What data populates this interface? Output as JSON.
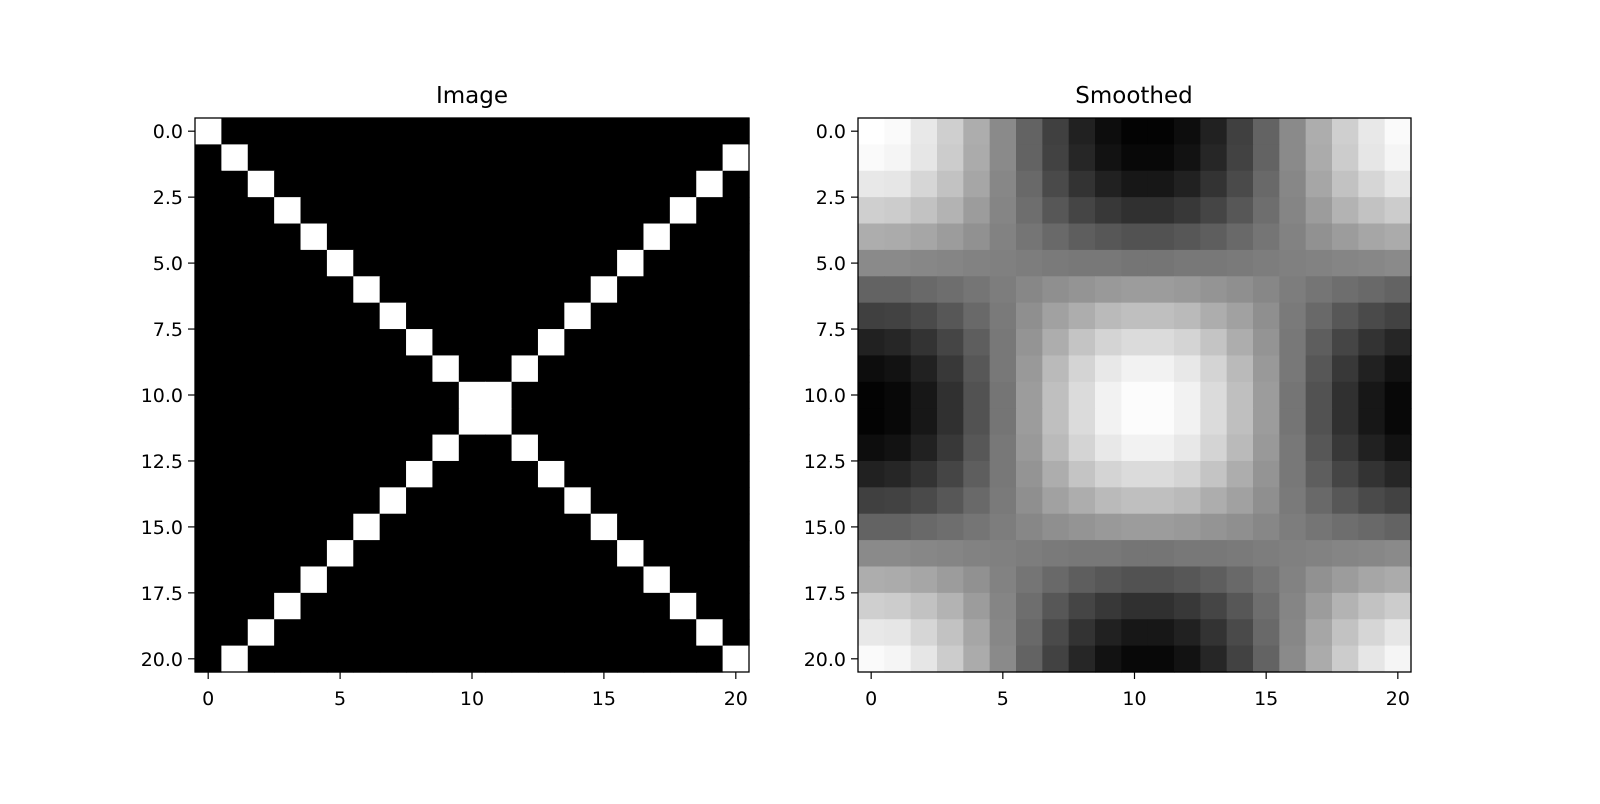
{
  "chart_data": [
    {
      "type": "heatmap",
      "title": "Image",
      "colormap": "gray",
      "xlim": [
        -0.5,
        20.5
      ],
      "ylim": [
        20.5,
        -0.5
      ],
      "xticks": [
        0,
        5,
        10,
        15,
        20
      ],
      "xtick_labels": [
        "0",
        "5",
        "10",
        "15",
        "20"
      ],
      "yticks": [
        0,
        2.5,
        5,
        7.5,
        10,
        12.5,
        15,
        17.5,
        20
      ],
      "ytick_labels": [
        "0.0",
        "2.5",
        "5.0",
        "7.5",
        "10.0",
        "12.5",
        "15.0",
        "17.5",
        "20.0"
      ],
      "vmin": 0,
      "vmax": 1,
      "z": [
        [
          1,
          0,
          0,
          0,
          0,
          0,
          0,
          0,
          0,
          0,
          0,
          0,
          0,
          0,
          0,
          0,
          0,
          0,
          0,
          0,
          0
        ],
        [
          0,
          1,
          0,
          0,
          0,
          0,
          0,
          0,
          0,
          0,
          0,
          0,
          0,
          0,
          0,
          0,
          0,
          0,
          0,
          0,
          1
        ],
        [
          0,
          0,
          1,
          0,
          0,
          0,
          0,
          0,
          0,
          0,
          0,
          0,
          0,
          0,
          0,
          0,
          0,
          0,
          0,
          1,
          0
        ],
        [
          0,
          0,
          0,
          1,
          0,
          0,
          0,
          0,
          0,
          0,
          0,
          0,
          0,
          0,
          0,
          0,
          0,
          0,
          1,
          0,
          0
        ],
        [
          0,
          0,
          0,
          0,
          1,
          0,
          0,
          0,
          0,
          0,
          0,
          0,
          0,
          0,
          0,
          0,
          0,
          1,
          0,
          0,
          0
        ],
        [
          0,
          0,
          0,
          0,
          0,
          1,
          0,
          0,
          0,
          0,
          0,
          0,
          0,
          0,
          0,
          0,
          1,
          0,
          0,
          0,
          0
        ],
        [
          0,
          0,
          0,
          0,
          0,
          0,
          1,
          0,
          0,
          0,
          0,
          0,
          0,
          0,
          0,
          1,
          0,
          0,
          0,
          0,
          0
        ],
        [
          0,
          0,
          0,
          0,
          0,
          0,
          0,
          1,
          0,
          0,
          0,
          0,
          0,
          0,
          1,
          0,
          0,
          0,
          0,
          0,
          0
        ],
        [
          0,
          0,
          0,
          0,
          0,
          0,
          0,
          0,
          1,
          0,
          0,
          0,
          0,
          1,
          0,
          0,
          0,
          0,
          0,
          0,
          0
        ],
        [
          0,
          0,
          0,
          0,
          0,
          0,
          0,
          0,
          0,
          1,
          0,
          0,
          1,
          0,
          0,
          0,
          0,
          0,
          0,
          0,
          0
        ],
        [
          0,
          0,
          0,
          0,
          0,
          0,
          0,
          0,
          0,
          0,
          1,
          1,
          0,
          0,
          0,
          0,
          0,
          0,
          0,
          0,
          0
        ],
        [
          0,
          0,
          0,
          0,
          0,
          0,
          0,
          0,
          0,
          0,
          1,
          1,
          0,
          0,
          0,
          0,
          0,
          0,
          0,
          0,
          0
        ],
        [
          0,
          0,
          0,
          0,
          0,
          0,
          0,
          0,
          0,
          1,
          0,
          0,
          1,
          0,
          0,
          0,
          0,
          0,
          0,
          0,
          0
        ],
        [
          0,
          0,
          0,
          0,
          0,
          0,
          0,
          0,
          1,
          0,
          0,
          0,
          0,
          1,
          0,
          0,
          0,
          0,
          0,
          0,
          0
        ],
        [
          0,
          0,
          0,
          0,
          0,
          0,
          0,
          1,
          0,
          0,
          0,
          0,
          0,
          0,
          1,
          0,
          0,
          0,
          0,
          0,
          0
        ],
        [
          0,
          0,
          0,
          0,
          0,
          0,
          1,
          0,
          0,
          0,
          0,
          0,
          0,
          0,
          0,
          1,
          0,
          0,
          0,
          0,
          0
        ],
        [
          0,
          0,
          0,
          0,
          0,
          1,
          0,
          0,
          0,
          0,
          0,
          0,
          0,
          0,
          0,
          0,
          1,
          0,
          0,
          0,
          0
        ],
        [
          0,
          0,
          0,
          0,
          1,
          0,
          0,
          0,
          0,
          0,
          0,
          0,
          0,
          0,
          0,
          0,
          0,
          1,
          0,
          0,
          0
        ],
        [
          0,
          0,
          0,
          1,
          0,
          0,
          0,
          0,
          0,
          0,
          0,
          0,
          0,
          0,
          0,
          0,
          0,
          0,
          1,
          0,
          0
        ],
        [
          0,
          0,
          1,
          0,
          0,
          0,
          0,
          0,
          0,
          0,
          0,
          0,
          0,
          0,
          0,
          0,
          0,
          0,
          0,
          1,
          0
        ],
        [
          0,
          1,
          0,
          0,
          0,
          0,
          0,
          0,
          0,
          0,
          0,
          0,
          0,
          0,
          0,
          0,
          0,
          0,
          0,
          0,
          1
        ]
      ]
    },
    {
      "type": "heatmap",
      "title": "Smoothed",
      "colormap": "gray",
      "xlim": [
        -0.5,
        20.5
      ],
      "ylim": [
        20.5,
        -0.5
      ],
      "xticks": [
        0,
        5,
        10,
        15,
        20
      ],
      "xtick_labels": [
        "0",
        "5",
        "10",
        "15",
        "20"
      ],
      "yticks": [
        0,
        2.5,
        5,
        7.5,
        10,
        12.5,
        15,
        17.5,
        20
      ],
      "ytick_labels": [
        "0.0",
        "2.5",
        "5.0",
        "7.5",
        "10.0",
        "12.5",
        "15.0",
        "17.5",
        "20.0"
      ],
      "vmin": 0,
      "vmax": 100,
      "z": [
        [
          100,
          98,
          91,
          81,
          68,
          54,
          39,
          25,
          13,
          5,
          1,
          1,
          5,
          13,
          25,
          39,
          54,
          68,
          81,
          91,
          98
        ],
        [
          98,
          96,
          90,
          80,
          67,
          54,
          39,
          26,
          15,
          7,
          3,
          3,
          7,
          15,
          26,
          39,
          54,
          67,
          80,
          90,
          96
        ],
        [
          91,
          90,
          84,
          76,
          65,
          53,
          41,
          29,
          20,
          13,
          9,
          9,
          13,
          20,
          29,
          41,
          53,
          65,
          76,
          84,
          90
        ],
        [
          81,
          80,
          76,
          70,
          61,
          52,
          43,
          34,
          27,
          22,
          19,
          19,
          22,
          27,
          34,
          43,
          52,
          61,
          70,
          76,
          80
        ],
        [
          68,
          67,
          65,
          61,
          57,
          51,
          46,
          41,
          37,
          34,
          32,
          32,
          34,
          37,
          41,
          46,
          51,
          57,
          61,
          65,
          67
        ],
        [
          54,
          54,
          53,
          52,
          51,
          50,
          49,
          48,
          47,
          47,
          46,
          46,
          47,
          47,
          48,
          49,
          50,
          51,
          52,
          53,
          54
        ],
        [
          39,
          39,
          41,
          43,
          46,
          49,
          53,
          56,
          58,
          60,
          61,
          61,
          60,
          58,
          56,
          53,
          49,
          46,
          43,
          41,
          39
        ],
        [
          25,
          26,
          29,
          34,
          41,
          48,
          56,
          63,
          68,
          73,
          75,
          75,
          73,
          68,
          63,
          56,
          48,
          41,
          34,
          29,
          26
        ],
        [
          13,
          15,
          20,
          27,
          37,
          47,
          58,
          68,
          77,
          83,
          86,
          86,
          83,
          77,
          68,
          58,
          47,
          37,
          27,
          20,
          15
        ],
        [
          5,
          7,
          13,
          22,
          34,
          47,
          60,
          73,
          83,
          91,
          95,
          95,
          91,
          83,
          73,
          60,
          47,
          34,
          22,
          13,
          7
        ],
        [
          1,
          3,
          9,
          19,
          32,
          46,
          61,
          75,
          86,
          95,
          99,
          99,
          95,
          86,
          75,
          61,
          46,
          32,
          19,
          9,
          3
        ],
        [
          1,
          3,
          9,
          19,
          32,
          46,
          61,
          75,
          86,
          95,
          99,
          99,
          95,
          86,
          75,
          61,
          46,
          32,
          19,
          9,
          3
        ],
        [
          5,
          7,
          13,
          22,
          34,
          47,
          60,
          73,
          83,
          91,
          95,
          95,
          91,
          83,
          73,
          60,
          47,
          34,
          22,
          13,
          7
        ],
        [
          13,
          15,
          20,
          27,
          37,
          47,
          58,
          68,
          77,
          83,
          86,
          86,
          83,
          77,
          68,
          58,
          47,
          37,
          27,
          20,
          15
        ],
        [
          25,
          26,
          29,
          34,
          41,
          48,
          56,
          63,
          68,
          73,
          75,
          75,
          73,
          68,
          63,
          56,
          48,
          41,
          34,
          29,
          26
        ],
        [
          39,
          39,
          41,
          43,
          46,
          49,
          53,
          56,
          58,
          60,
          61,
          61,
          60,
          58,
          56,
          53,
          49,
          46,
          43,
          41,
          39
        ],
        [
          54,
          54,
          53,
          52,
          51,
          50,
          49,
          48,
          47,
          47,
          46,
          46,
          47,
          47,
          48,
          49,
          50,
          51,
          52,
          53,
          54
        ],
        [
          68,
          67,
          65,
          61,
          57,
          51,
          46,
          41,
          37,
          34,
          32,
          32,
          34,
          37,
          41,
          46,
          51,
          57,
          61,
          65,
          67
        ],
        [
          81,
          80,
          76,
          70,
          61,
          52,
          43,
          34,
          27,
          22,
          19,
          19,
          22,
          27,
          34,
          43,
          52,
          61,
          70,
          76,
          80
        ],
        [
          91,
          90,
          84,
          76,
          65,
          53,
          41,
          29,
          20,
          13,
          9,
          9,
          13,
          20,
          29,
          41,
          53,
          65,
          76,
          84,
          90
        ],
        [
          98,
          96,
          90,
          80,
          67,
          54,
          39,
          26,
          15,
          7,
          3,
          3,
          7,
          15,
          26,
          39,
          54,
          67,
          80,
          90,
          96
        ]
      ]
    }
  ]
}
